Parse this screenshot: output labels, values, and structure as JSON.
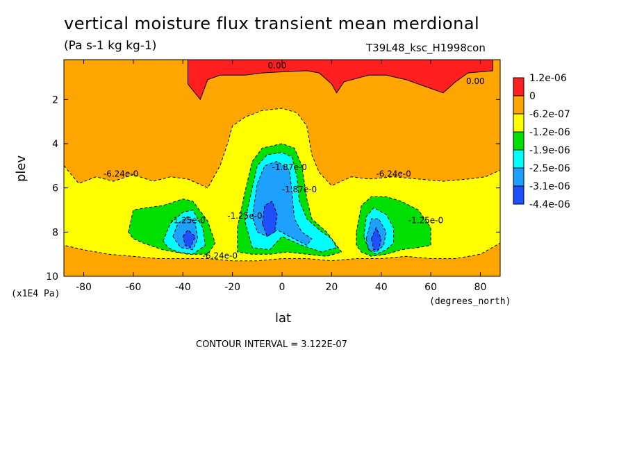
{
  "chart_data": {
    "type": "heatmap",
    "title": "vertical moisture flux transient mean merdional",
    "units": "(Pa s-1 kg kg-1)",
    "run_label": "T39L48_ksc_H1998con",
    "xlabel": "lat",
    "x_units": "(degrees_north)",
    "ylabel": "plev",
    "y_units": "(x1E4 Pa)",
    "xlim": [
      -88,
      88
    ],
    "ylim": [
      0.2,
      10
    ],
    "y_inverted": true,
    "x_ticks": [
      -80,
      -60,
      -40,
      -20,
      0,
      20,
      40,
      60,
      80
    ],
    "x_tick_labels": [
      "-80",
      "-60",
      "-40",
      "-20",
      "0",
      "20",
      "40",
      "60",
      "80"
    ],
    "y_ticks": [
      2,
      4,
      6,
      8,
      10
    ],
    "y_tick_labels": [
      "2",
      "4",
      "6",
      "8",
      "10"
    ],
    "contour_interval_text": "CONTOUR INTERVAL = 3.122E-07",
    "legend": {
      "placement": "right",
      "levels": [
        "1.2e-06",
        "0",
        "-6.2e-07",
        "-1.2e-06",
        "-1.9e-06",
        "-2.5e-06",
        "-3.1e-06",
        "-4.4e-06"
      ],
      "colors": [
        "#ff1f1f",
        "#ffa500",
        "#ffff00",
        "#00e000",
        "#00ffff",
        "#1ea0ff",
        "#1e50ff"
      ]
    },
    "contour_labels": [
      "0.00",
      "0.00",
      "-6.24e-0",
      "-6.24e-0",
      "-6.24e-0",
      "-1.25e-0",
      "-1.25e-0",
      "-1.87e-0",
      "-1.25e-0",
      "-1.87e-0"
    ],
    "regions": [
      {
        "value_band": "0 to 1.2e-06",
        "color": "#ff1f1f",
        "points": [
          [
            -38,
            0.2
          ],
          [
            -10,
            0.2
          ],
          [
            10,
            0.2
          ],
          [
            50,
            0.2
          ],
          [
            70,
            0.2
          ],
          [
            85,
            0.2
          ],
          [
            85,
            0.7
          ],
          [
            75,
            0.8
          ],
          [
            70,
            1.2
          ],
          [
            65,
            1.7
          ],
          [
            60,
            1.5
          ],
          [
            55,
            1.3
          ],
          [
            50,
            1.1
          ],
          [
            42,
            0.9
          ],
          [
            35,
            0.9
          ],
          [
            25,
            1.2
          ],
          [
            22,
            1.7
          ],
          [
            20,
            1.3
          ],
          [
            15,
            0.8
          ],
          [
            10,
            0.7
          ],
          [
            0,
            0.75
          ],
          [
            -8,
            0.8
          ],
          [
            -15,
            0.9
          ],
          [
            -20,
            0.9
          ],
          [
            -25,
            0.9
          ],
          [
            -30,
            1.1
          ],
          [
            -33,
            2.0
          ],
          [
            -38,
            1.3
          ],
          [
            -38,
            0.2
          ]
        ]
      },
      {
        "value_band": "-6.2e-07 to 0",
        "color": "#ffff00",
        "points": [
          [
            -88,
            5.0
          ],
          [
            -82,
            5.8
          ],
          [
            -75,
            5.5
          ],
          [
            -68,
            5.7
          ],
          [
            -60,
            5.4
          ],
          [
            -52,
            5.7
          ],
          [
            -45,
            5.5
          ],
          [
            -38,
            5.6
          ],
          [
            -30,
            6.0
          ],
          [
            -25,
            5.0
          ],
          [
            -22,
            4.0
          ],
          [
            -20,
            3.2
          ],
          [
            -15,
            2.8
          ],
          [
            -8,
            2.5
          ],
          [
            0,
            2.4
          ],
          [
            6,
            2.6
          ],
          [
            10,
            3.2
          ],
          [
            12,
            4.5
          ],
          [
            15,
            5.3
          ],
          [
            20,
            5.9
          ],
          [
            28,
            5.5
          ],
          [
            35,
            5.6
          ],
          [
            45,
            5.5
          ],
          [
            55,
            5.6
          ],
          [
            65,
            5.7
          ],
          [
            75,
            5.6
          ],
          [
            82,
            5.5
          ],
          [
            88,
            5.2
          ],
          [
            88,
            8.5
          ],
          [
            80,
            9.0
          ],
          [
            70,
            9.2
          ],
          [
            60,
            9.2
          ],
          [
            50,
            9.1
          ],
          [
            40,
            9.2
          ],
          [
            30,
            9.2
          ],
          [
            20,
            9.3
          ],
          [
            10,
            9.2
          ],
          [
            0,
            9.2
          ],
          [
            -10,
            9.3
          ],
          [
            -20,
            9.3
          ],
          [
            -30,
            9.2
          ],
          [
            -40,
            9.2
          ],
          [
            -50,
            9.2
          ],
          [
            -60,
            9.1
          ],
          [
            -70,
            9.0
          ],
          [
            -80,
            8.8
          ],
          [
            -88,
            8.6
          ]
        ]
      },
      {
        "value_band": "-1.2e-06 to -6.2e-07",
        "color": "#00e000",
        "points": [
          [
            -62,
            8.0
          ],
          [
            -60,
            7.0
          ],
          [
            -55,
            6.9
          ],
          [
            -48,
            6.8
          ],
          [
            -40,
            6.5
          ],
          [
            -36,
            6.6
          ],
          [
            -30,
            7.5
          ],
          [
            -27,
            8.5
          ],
          [
            -30,
            9.0
          ],
          [
            -38,
            9.0
          ],
          [
            -48,
            8.8
          ],
          [
            -56,
            8.5
          ],
          [
            -60,
            8.3
          ]
        ]
      },
      {
        "value_band": "-1.2e-06 to -6.2e-07",
        "color": "#00e000",
        "points": [
          [
            -18,
            7.8
          ],
          [
            -15,
            6.2
          ],
          [
            -12,
            4.8
          ],
          [
            -8,
            4.2
          ],
          [
            0,
            4.0
          ],
          [
            5,
            4.2
          ],
          [
            8,
            5.0
          ],
          [
            10,
            6.5
          ],
          [
            12,
            7.4
          ],
          [
            18,
            8.0
          ],
          [
            22,
            8.6
          ],
          [
            24,
            8.9
          ],
          [
            18,
            9.1
          ],
          [
            10,
            9.0
          ],
          [
            2,
            8.9
          ],
          [
            -5,
            9.0
          ],
          [
            -12,
            9.0
          ],
          [
            -18,
            8.9
          ]
        ]
      },
      {
        "value_band": "-1.2e-06 to -6.2e-07",
        "color": "#00e000",
        "points": [
          [
            30,
            8.0
          ],
          [
            32,
            6.8
          ],
          [
            36,
            6.4
          ],
          [
            42,
            6.4
          ],
          [
            48,
            6.6
          ],
          [
            55,
            7.0
          ],
          [
            60,
            7.8
          ],
          [
            60,
            8.6
          ],
          [
            55,
            8.7
          ],
          [
            48,
            8.8
          ],
          [
            42,
            9.0
          ],
          [
            36,
            9.1
          ],
          [
            32,
            8.9
          ],
          [
            30,
            8.6
          ]
        ]
      },
      {
        "value_band": "-1.9e-06 to -1.2e-06",
        "color": "#00ffff",
        "points": [
          [
            -48,
            8.4
          ],
          [
            -45,
            7.6
          ],
          [
            -40,
            7.1
          ],
          [
            -36,
            7.0
          ],
          [
            -32,
            7.8
          ],
          [
            -31,
            8.6
          ],
          [
            -36,
            9.0
          ],
          [
            -42,
            8.9
          ],
          [
            -46,
            8.7
          ]
        ]
      },
      {
        "value_band": "-1.9e-06 to -1.2e-06",
        "color": "#00ffff",
        "points": [
          [
            -15,
            7.5
          ],
          [
            -12,
            6.0
          ],
          [
            -10,
            5.0
          ],
          [
            -6,
            4.5
          ],
          [
            0,
            4.4
          ],
          [
            4,
            4.6
          ],
          [
            6,
            5.5
          ],
          [
            7,
            6.6
          ],
          [
            10,
            7.4
          ],
          [
            15,
            7.9
          ],
          [
            20,
            8.3
          ],
          [
            22,
            8.7
          ],
          [
            16,
            8.9
          ],
          [
            8,
            8.6
          ],
          [
            0,
            8.2
          ],
          [
            -5,
            8.8
          ],
          [
            -12,
            8.7
          ]
        ]
      },
      {
        "value_band": "-1.9e-06 to -1.2e-06",
        "color": "#00ffff",
        "points": [
          [
            33,
            8.2
          ],
          [
            34,
            7.3
          ],
          [
            37,
            6.9
          ],
          [
            42,
            7.2
          ],
          [
            45,
            7.8
          ],
          [
            45,
            8.5
          ],
          [
            42,
            8.8
          ],
          [
            38,
            9.0
          ],
          [
            35,
            8.8
          ]
        ]
      },
      {
        "value_band": "-2.5e-06 to -1.9e-06",
        "color": "#1ea0ff",
        "points": [
          [
            -44,
            8.2
          ],
          [
            -42,
            7.6
          ],
          [
            -38,
            7.3
          ],
          [
            -35,
            7.6
          ],
          [
            -34,
            8.3
          ],
          [
            -36,
            8.8
          ],
          [
            -41,
            8.7
          ]
        ]
      },
      {
        "value_band": "-2.5e-06 to -1.9e-06",
        "color": "#1ea0ff",
        "points": [
          [
            -12,
            7.3
          ],
          [
            -10,
            5.8
          ],
          [
            -7,
            5.0
          ],
          [
            -2,
            4.8
          ],
          [
            3,
            5.2
          ],
          [
            4,
            6.2
          ],
          [
            5,
            7.4
          ],
          [
            8,
            8.0
          ],
          [
            12,
            8.3
          ],
          [
            10,
            8.6
          ],
          [
            3,
            8.2
          ],
          [
            -2,
            7.9
          ],
          [
            -6,
            8.2
          ],
          [
            -10,
            8.0
          ]
        ]
      },
      {
        "value_band": "-2.5e-06 to -1.9e-06",
        "color": "#1ea0ff",
        "points": [
          [
            34,
            8.3
          ],
          [
            36,
            7.4
          ],
          [
            39,
            7.4
          ],
          [
            42,
            8.0
          ],
          [
            41,
            8.6
          ],
          [
            38,
            8.9
          ],
          [
            35,
            8.8
          ]
        ]
      },
      {
        "value_band": "-3.1e-06 to -2.5e-06",
        "color": "#1e50ff",
        "points": [
          [
            -40,
            8.2
          ],
          [
            -38,
            7.9
          ],
          [
            -35,
            8.2
          ],
          [
            -37,
            8.7
          ],
          [
            -39,
            8.6
          ]
        ]
      },
      {
        "value_band": "-3.1e-06 to -2.5e-06",
        "color": "#1e50ff",
        "points": [
          [
            -8,
            7.6
          ],
          [
            -7,
            6.8
          ],
          [
            -4,
            6.6
          ],
          [
            -2,
            7.2
          ],
          [
            -3,
            8.0
          ],
          [
            -6,
            8.2
          ]
        ]
      },
      {
        "value_band": "-3.1e-06 to -2.5e-06",
        "color": "#1e50ff",
        "points": [
          [
            36,
            8.3
          ],
          [
            38,
            7.8
          ],
          [
            40,
            8.3
          ],
          [
            39,
            8.8
          ],
          [
            37,
            8.8
          ]
        ]
      }
    ]
  }
}
